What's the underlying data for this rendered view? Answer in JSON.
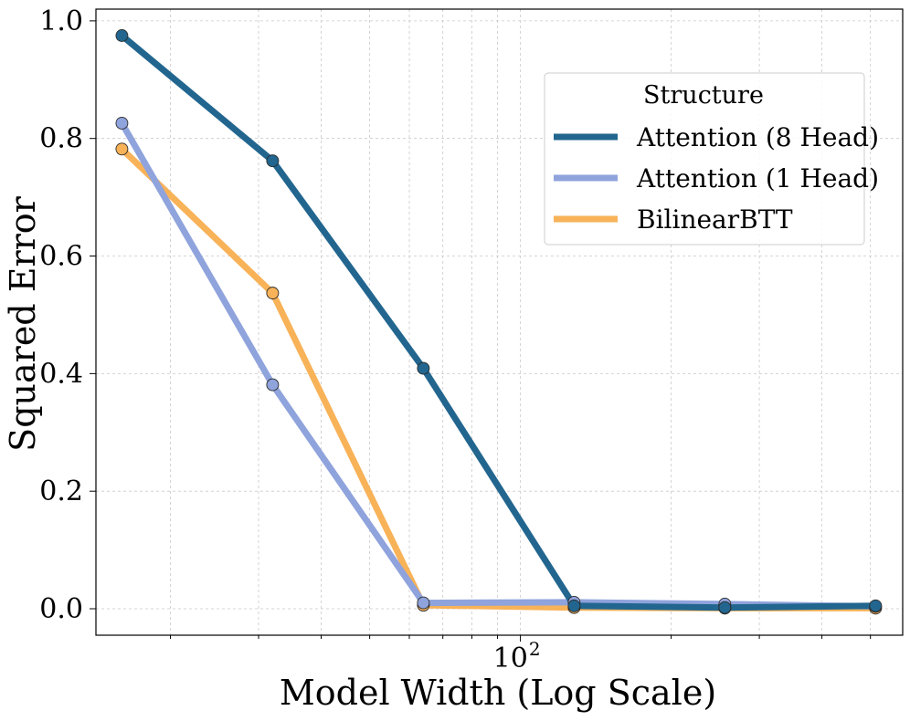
{
  "chart_data": {
    "type": "line",
    "title": "",
    "xlabel": "Model Width (Log Scale)",
    "ylabel": "Squared Error",
    "xscale": "log",
    "x": [
      16,
      32,
      64,
      128,
      256,
      512
    ],
    "xlim": [
      14.2,
      580
    ],
    "ylim": [
      -0.045,
      1.02
    ],
    "yticks": [
      0.0,
      0.2,
      0.4,
      0.6,
      0.8,
      1.0
    ],
    "ytick_labels": [
      "0.0",
      "0.2",
      "0.4",
      "0.6",
      "0.8",
      "1.0"
    ],
    "xtick_major": {
      "value": 100,
      "base": "10",
      "exponent": "2"
    },
    "grid": true,
    "legend": {
      "title": "Structure",
      "placement": "top-right"
    },
    "series": [
      {
        "name": "Attention (8 Head)",
        "color": "#22668f",
        "values": [
          0.975,
          0.762,
          0.409,
          0.005,
          0.002,
          0.005
        ]
      },
      {
        "name": "Attention (1 Head)",
        "color": "#8fa3dc",
        "values": [
          0.826,
          0.381,
          0.01,
          0.011,
          0.008,
          0.004
        ]
      },
      {
        "name": "BilinearBTT",
        "color": "#f8b258",
        "values": [
          0.782,
          0.537,
          0.006,
          0.002,
          0.001,
          0.001
        ]
      }
    ]
  }
}
